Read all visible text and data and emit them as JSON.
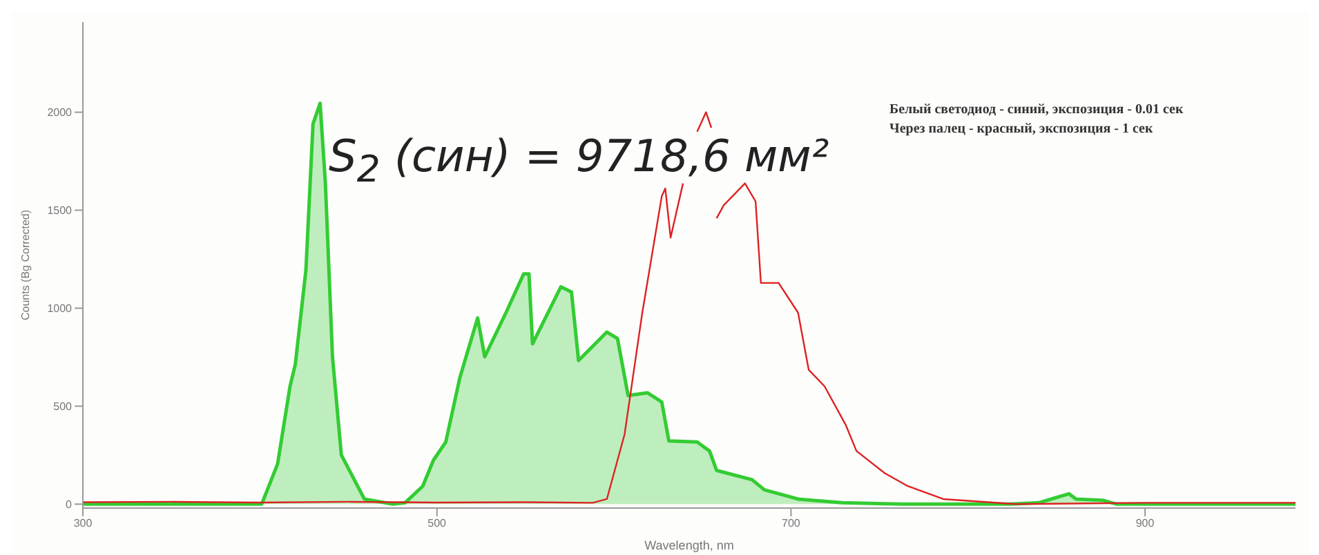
{
  "chart_data": {
    "type": "line",
    "xlabel": "Wavelength, nm",
    "ylabel": "Counts (Bg Corrected)",
    "annotations": [
      "S$_{2}$ (син) = 9718,6 мм²",
      "Белый светодиод - синий, экспозиция - 0.01 сек",
      "Через палец - красный, экспозиция - 1 сек"
    ],
    "xlim": [
      300,
      985
    ],
    "ylim": [
      -20,
      2460
    ],
    "xticks": [
      300,
      500,
      700,
      900
    ],
    "yticks": [
      0,
      500,
      1000,
      1500,
      2000
    ],
    "grid": false,
    "legend": false,
    "marker": "none",
    "line_style": "solid",
    "series": [
      {
        "type": "area",
        "color": "#33cc33",
        "x": [
          300,
          401,
          410,
          417,
          420,
          426,
          430,
          434,
          437,
          441,
          446,
          459,
          475,
          482,
          492,
          498,
          505,
          513,
          523,
          527,
          539,
          549,
          552,
          554,
          570,
          576,
          580,
          596,
          602,
          608,
          619,
          627,
          631,
          647,
          654,
          658,
          678,
          685,
          704,
          712,
          729,
          763,
          824,
          840,
          857,
          861,
          876,
          884,
          985
        ],
        "values": [
          0,
          0,
          205,
          600,
          713,
          1195,
          1940,
          2046,
          1637,
          752,
          251,
          26,
          0,
          7,
          92,
          224,
          317,
          647,
          950,
          752,
          977,
          1175,
          1175,
          818,
          1109,
          1083,
          733,
          878,
          845,
          554,
          568,
          521,
          323,
          317,
          271,
          172,
          125,
          73,
          26,
          20,
          7,
          0,
          0,
          7,
          53,
          26,
          20,
          0,
          0
        ]
      },
      {
        "color": "#dd2222",
        "x": [
          300,
          350,
          400,
          450,
          500,
          550,
          588,
          596,
          606,
          616,
          627,
          629,
          632,
          639,
          644,
          647,
          652,
          655,
          656,
          658,
          662,
          674,
          680,
          683,
          693,
          704,
          710,
          719,
          731,
          737,
          753,
          766,
          786,
          827,
          900,
          985
        ],
        "values": [
          10,
          12,
          8,
          12,
          8,
          10,
          7,
          26,
          356,
          977,
          1571,
          1611,
          1360,
          1637,
          null,
          1901,
          2000,
          1921,
          null,
          1459,
          1525,
          1637,
          1545,
          1129,
          1129,
          977,
          686,
          601,
          403,
          271,
          158,
          92,
          26,
          0,
          7,
          7
        ]
      }
    ]
  }
}
